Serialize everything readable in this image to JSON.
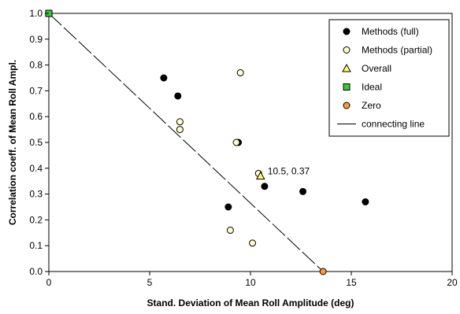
{
  "chart_data": {
    "type": "scatter",
    "title": "",
    "xlabel": "Stand. Deviation of Mean Roll Amplitude (deg)",
    "ylabel": "Correlation coeff. of Mean Roll Ampl.",
    "xlim": [
      0,
      20
    ],
    "ylim": [
      0,
      1.0
    ],
    "x_ticks": [
      "0",
      "5",
      "10",
      "15",
      "20"
    ],
    "y_ticks": [
      "0.0",
      "0.1",
      "0.2",
      "0.3",
      "0.4",
      "0.5",
      "0.6",
      "0.7",
      "0.8",
      "0.9",
      "1.0"
    ],
    "grid": false,
    "legend_position": "top-right",
    "series": [
      {
        "name": "Methods (full)",
        "marker": "circle",
        "color": "#000000",
        "points": [
          {
            "x": 5.7,
            "y": 0.75
          },
          {
            "x": 6.4,
            "y": 0.68
          },
          {
            "x": 9.4,
            "y": 0.5
          },
          {
            "x": 10.7,
            "y": 0.33
          },
          {
            "x": 12.6,
            "y": 0.31
          },
          {
            "x": 15.7,
            "y": 0.27
          },
          {
            "x": 8.9,
            "y": 0.25
          }
        ]
      },
      {
        "name": "Methods (partial)",
        "marker": "circle",
        "color": "#ffffcc",
        "points": [
          {
            "x": 9.5,
            "y": 0.77
          },
          {
            "x": 6.5,
            "y": 0.58
          },
          {
            "x": 6.5,
            "y": 0.55
          },
          {
            "x": 9.3,
            "y": 0.5
          },
          {
            "x": 10.4,
            "y": 0.38
          },
          {
            "x": 9.0,
            "y": 0.16
          },
          {
            "x": 10.1,
            "y": 0.11
          }
        ]
      },
      {
        "name": "Overall",
        "marker": "triangle",
        "color": "#ffff66",
        "points": [
          {
            "x": 10.5,
            "y": 0.37
          }
        ]
      },
      {
        "name": "Ideal",
        "marker": "square",
        "color": "#33cc33",
        "points": [
          {
            "x": 0,
            "y": 1.0
          }
        ]
      },
      {
        "name": "Zero",
        "marker": "circle",
        "color": "#ff9933",
        "points": [
          {
            "x": 13.6,
            "y": 0.0
          }
        ]
      },
      {
        "name": "connecting line",
        "marker": "line",
        "color": "#000000",
        "points": [
          {
            "x": 0,
            "y": 1.0
          },
          {
            "x": 13.6,
            "y": 0.0
          }
        ]
      }
    ],
    "annotations": [
      {
        "text": "10.5, 0.37",
        "x": 10.5,
        "y": 0.37
      }
    ]
  }
}
